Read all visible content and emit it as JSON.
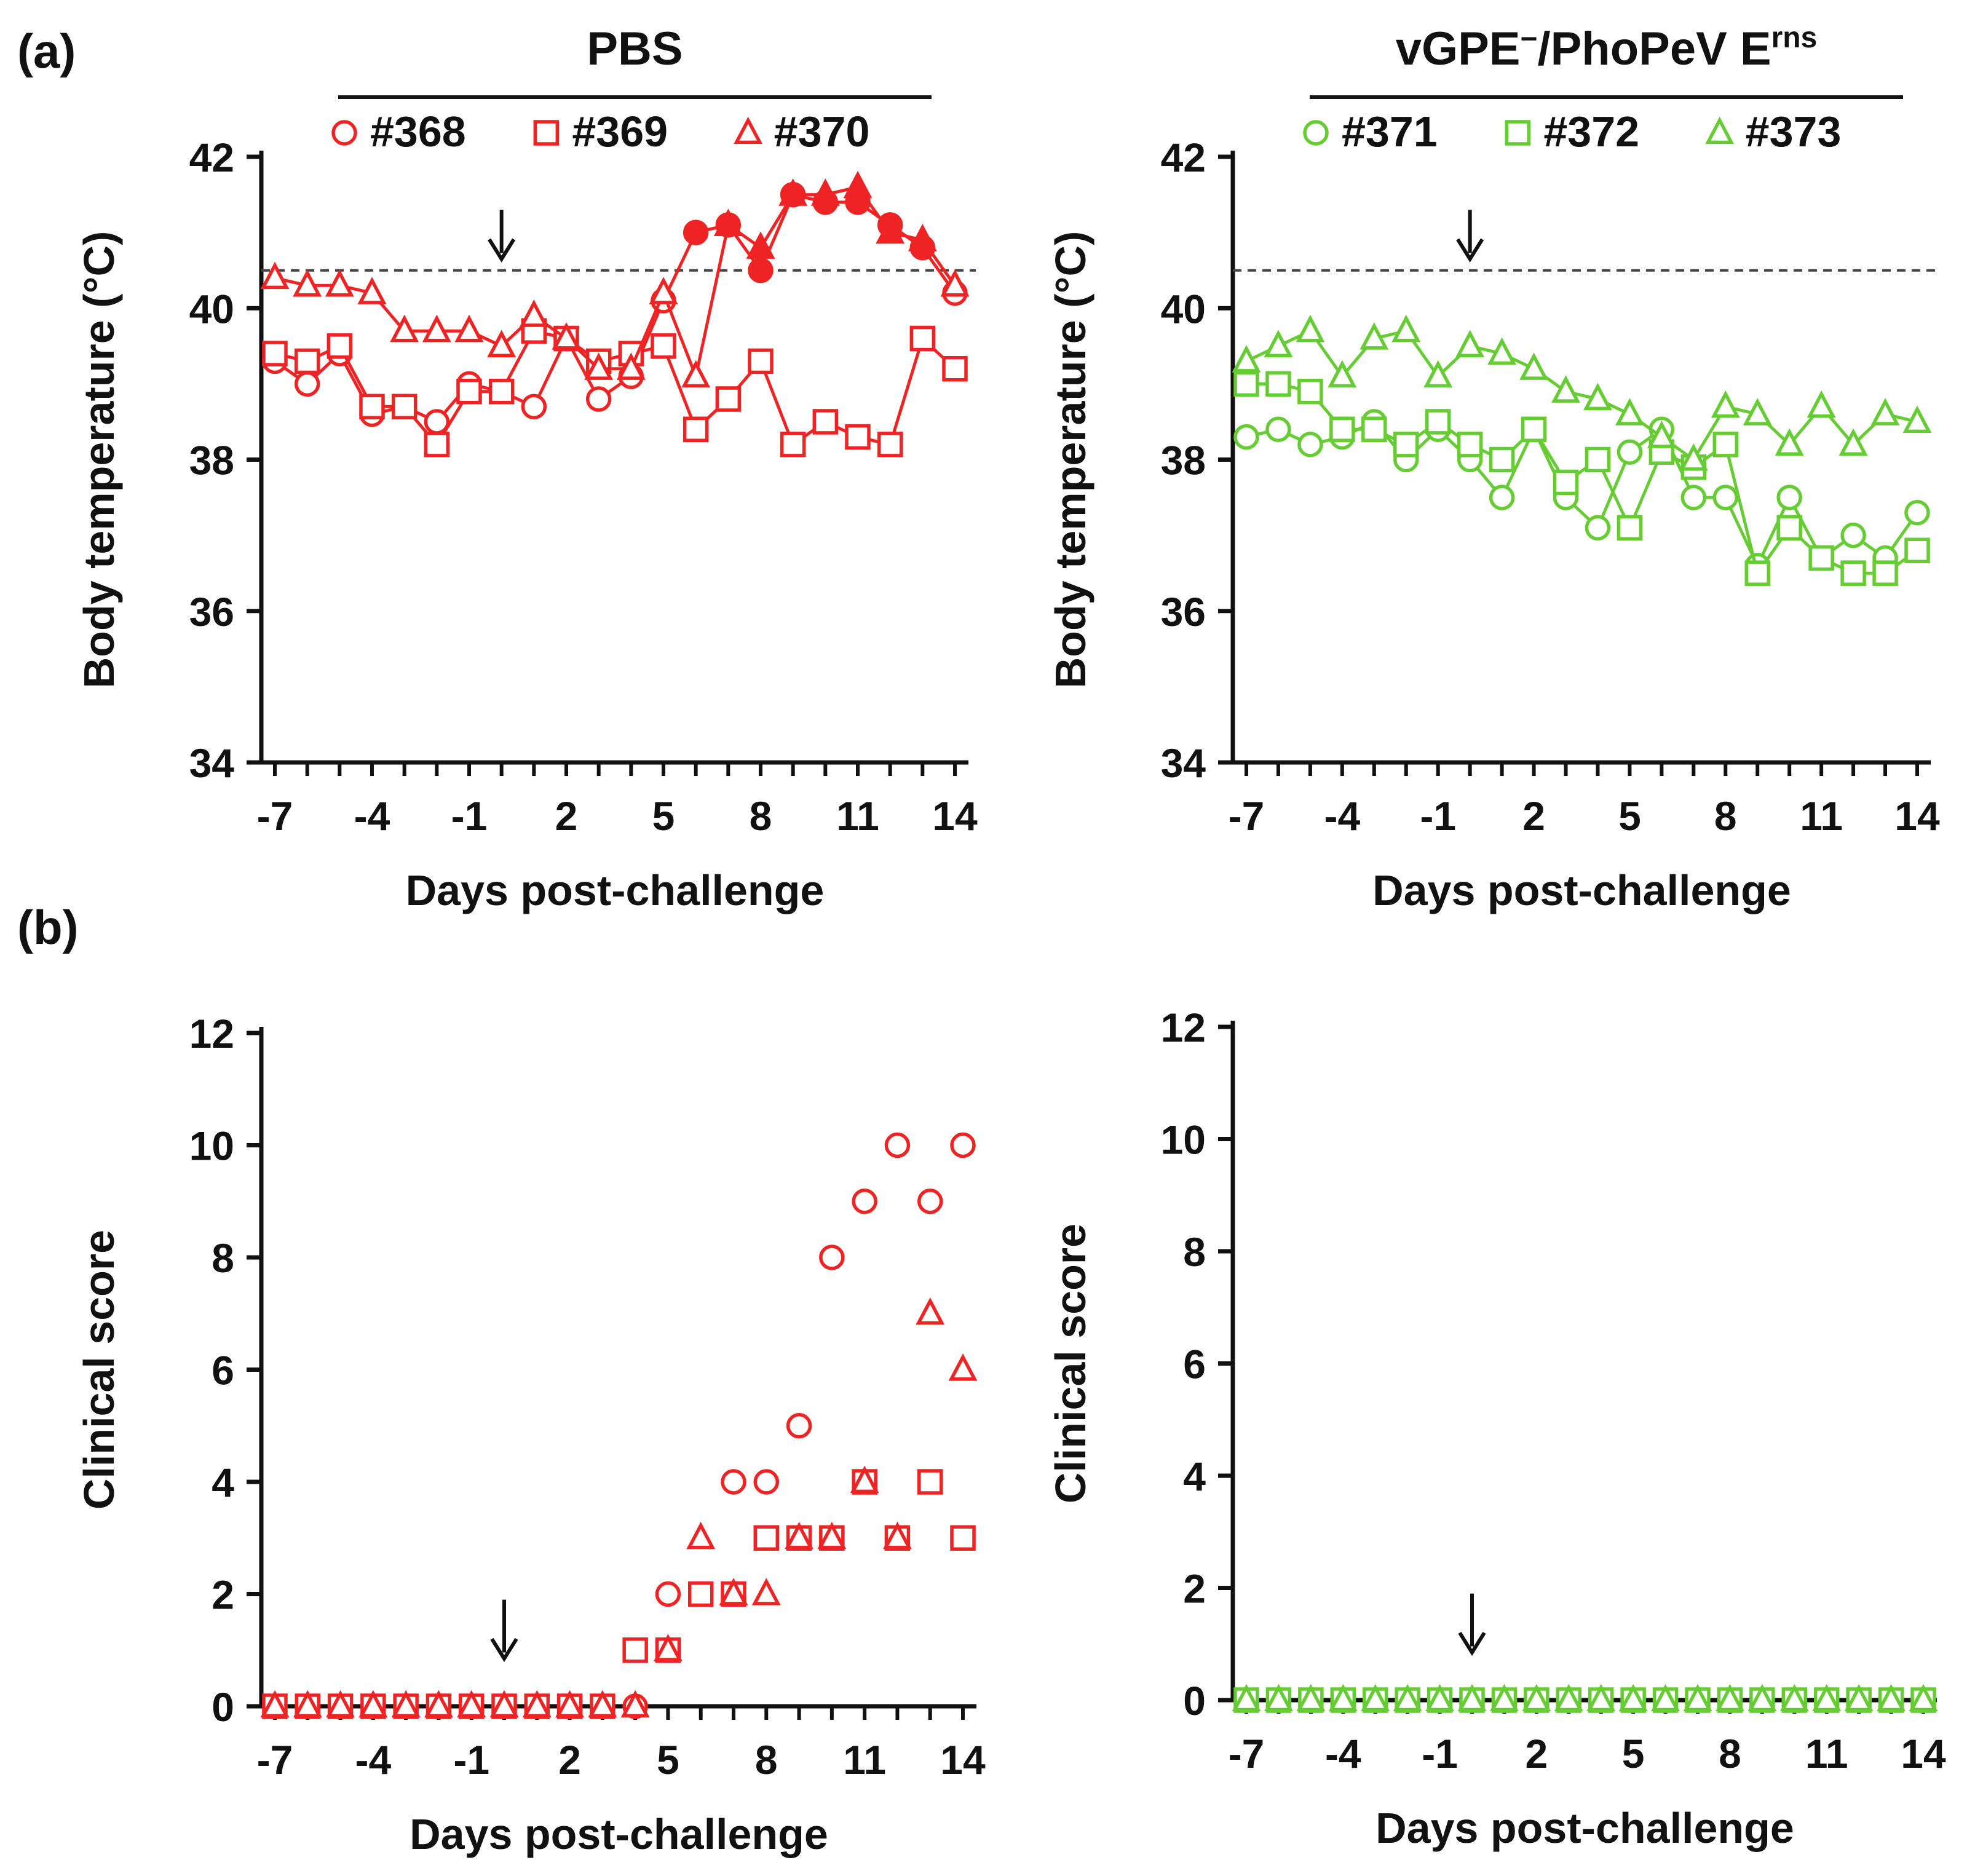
{
  "figure": {
    "label_a": "(a)",
    "label_b": "(b)"
  },
  "colors": {
    "pbs": "#ee2424",
    "vaccine": "#66cc33",
    "axis": "#111111",
    "threshold": "#444444"
  },
  "chart_data": [
    {
      "id": "temp_pbs",
      "type": "line",
      "group_title": "PBS",
      "ylabel": "Body temperature (°C)",
      "xlabel": "Days post-challenge",
      "ylim": [
        34,
        42
      ],
      "yticks": [
        "34",
        "36",
        "38",
        "40",
        "42"
      ],
      "xlim": [
        -7,
        14
      ],
      "xticks": [
        "-7",
        "-4",
        "-1",
        "2",
        "5",
        "8",
        "11",
        "14"
      ],
      "threshold": 40.5,
      "arrow_day": 0,
      "color_key": "pbs",
      "series": [
        {
          "name": "#368",
          "marker": "circle",
          "x": [
            -7,
            -6,
            -5,
            -4,
            -3,
            -2,
            -1,
            0,
            1,
            2,
            3,
            4,
            5,
            6,
            7,
            8,
            9,
            10,
            11,
            12,
            13,
            14
          ],
          "y": [
            39.3,
            39.0,
            39.4,
            38.6,
            38.7,
            38.5,
            39.0,
            38.9,
            38.7,
            39.6,
            38.8,
            39.1,
            40.1,
            41.0,
            41.1,
            40.5,
            41.5,
            41.4,
            41.4,
            41.1,
            40.8,
            40.2
          ],
          "filled_from": 6
        },
        {
          "name": "#369",
          "marker": "square",
          "x": [
            -7,
            -6,
            -5,
            -4,
            -3,
            -2,
            -1,
            0,
            1,
            2,
            3,
            4,
            5,
            6,
            7,
            8,
            9,
            10,
            11,
            12,
            13,
            14
          ],
          "y": [
            39.4,
            39.3,
            39.5,
            38.7,
            38.7,
            38.2,
            38.9,
            38.9,
            39.7,
            39.6,
            39.3,
            39.4,
            39.5,
            38.4,
            38.8,
            39.3,
            38.2,
            38.5,
            38.3,
            38.2,
            39.6,
            39.2
          ],
          "filled_from": 99
        },
        {
          "name": "#370",
          "marker": "triangle",
          "x": [
            -7,
            -6,
            -5,
            -4,
            -3,
            -2,
            -1,
            0,
            1,
            2,
            3,
            4,
            5,
            6,
            7,
            8,
            9,
            10,
            11,
            12,
            13,
            14
          ],
          "y": [
            40.4,
            40.3,
            40.3,
            40.2,
            39.7,
            39.7,
            39.7,
            39.5,
            39.9,
            39.6,
            39.2,
            39.2,
            40.2,
            39.1,
            41.1,
            40.8,
            41.5,
            41.5,
            41.6,
            41.0,
            40.9,
            40.3
          ],
          "filled_from": 7
        }
      ]
    },
    {
      "id": "temp_vac",
      "type": "line",
      "group_title": "vGPE",
      "group_title_sup1": "−",
      "group_title_mid": "/PhoPeV E",
      "group_title_sup2": "rns",
      "ylabel": "Body temperature (°C)",
      "xlabel": "Days post-challenge",
      "ylim": [
        34,
        42
      ],
      "yticks": [
        "34",
        "36",
        "38",
        "40",
        "42"
      ],
      "xlim": [
        -7,
        14
      ],
      "xticks": [
        "-7",
        "-4",
        "-1",
        "2",
        "5",
        "8",
        "11",
        "14"
      ],
      "threshold": 40.5,
      "arrow_day": 0,
      "color_key": "vaccine",
      "series": [
        {
          "name": "#371",
          "marker": "circle",
          "x": [
            -7,
            -6,
            -5,
            -4,
            -3,
            -2,
            -1,
            0,
            1,
            2,
            3,
            4,
            5,
            6,
            7,
            8,
            9,
            10,
            11,
            12,
            13,
            14
          ],
          "y": [
            38.3,
            38.4,
            38.2,
            38.3,
            38.5,
            38.0,
            38.4,
            38.0,
            37.5,
            38.4,
            37.5,
            37.1,
            38.1,
            38.4,
            37.5,
            37.5,
            36.6,
            37.5,
            36.7,
            37.0,
            36.7,
            37.3
          ],
          "filled_from": 99
        },
        {
          "name": "#372",
          "marker": "square",
          "x": [
            -7,
            -6,
            -5,
            -4,
            -3,
            -2,
            -1,
            0,
            1,
            2,
            3,
            4,
            5,
            6,
            7,
            8,
            9,
            10,
            11,
            12,
            13,
            14
          ],
          "y": [
            39.0,
            39.0,
            38.9,
            38.4,
            38.4,
            38.2,
            38.5,
            38.2,
            38.0,
            38.4,
            37.7,
            38.0,
            37.1,
            38.1,
            37.9,
            38.2,
            36.5,
            37.1,
            36.7,
            36.5,
            36.5,
            36.8
          ],
          "filled_from": 99
        },
        {
          "name": "#373",
          "marker": "triangle",
          "x": [
            -7,
            -6,
            -5,
            -4,
            -3,
            -2,
            -1,
            0,
            1,
            2,
            3,
            4,
            5,
            6,
            7,
            8,
            9,
            10,
            11,
            12,
            13,
            14
          ],
          "y": [
            39.3,
            39.5,
            39.7,
            39.1,
            39.6,
            39.7,
            39.1,
            39.5,
            39.4,
            39.2,
            38.9,
            38.8,
            38.6,
            38.3,
            38.0,
            38.7,
            38.6,
            38.2,
            38.7,
            38.2,
            38.6,
            38.5
          ],
          "filled_from": 99
        }
      ]
    },
    {
      "id": "score_pbs",
      "type": "scatter",
      "ylabel": "Clinical score",
      "xlabel": "Days post-challenge",
      "ylim": [
        0,
        12
      ],
      "yticks": [
        "0",
        "2",
        "4",
        "6",
        "8",
        "10",
        "12"
      ],
      "xlim": [
        -7,
        14
      ],
      "xticks": [
        "-7",
        "-4",
        "-1",
        "2",
        "5",
        "8",
        "11",
        "14"
      ],
      "arrow_day": 0,
      "color_key": "pbs",
      "series": [
        {
          "name": "#368",
          "marker": "circle",
          "x": [
            -7,
            -6,
            -5,
            -4,
            -3,
            -2,
            -1,
            0,
            1,
            2,
            3,
            4,
            5,
            6,
            7,
            8,
            9,
            10,
            11,
            12,
            13,
            14
          ],
          "y": [
            0,
            0,
            0,
            0,
            0,
            0,
            0,
            0,
            0,
            0,
            0,
            0,
            2,
            2,
            4,
            4,
            5,
            8,
            9,
            10,
            9,
            10
          ]
        },
        {
          "name": "#369",
          "marker": "square",
          "x": [
            -7,
            -6,
            -5,
            -4,
            -3,
            -2,
            -1,
            0,
            1,
            2,
            3,
            4,
            5,
            6,
            7,
            8,
            9,
            10,
            11,
            12,
            13,
            14
          ],
          "y": [
            0,
            0,
            0,
            0,
            0,
            0,
            0,
            0,
            0,
            0,
            0,
            1,
            1,
            2,
            2,
            3,
            3,
            3,
            4,
            3,
            4,
            3
          ]
        },
        {
          "name": "#370",
          "marker": "triangle",
          "x": [
            -7,
            -6,
            -5,
            -4,
            -3,
            -2,
            -1,
            0,
            1,
            2,
            3,
            4,
            5,
            6,
            7,
            8,
            9,
            10,
            11,
            12,
            13,
            14
          ],
          "y": [
            0,
            0,
            0,
            0,
            0,
            0,
            0,
            0,
            0,
            0,
            0,
            0,
            1,
            3,
            2,
            2,
            3,
            3,
            4,
            3,
            7,
            6
          ]
        }
      ]
    },
    {
      "id": "score_vac",
      "type": "scatter",
      "ylabel": "Clinical score",
      "xlabel": "Days post-challenge",
      "ylim": [
        0,
        12
      ],
      "yticks": [
        "0",
        "2",
        "4",
        "6",
        "8",
        "10",
        "12"
      ],
      "xlim": [
        -7,
        14
      ],
      "xticks": [
        "-7",
        "-4",
        "-1",
        "2",
        "5",
        "8",
        "11",
        "14"
      ],
      "arrow_day": 0,
      "color_key": "vaccine",
      "series": [
        {
          "name": "#371",
          "marker": "circle",
          "x": [
            -7,
            -6,
            -5,
            -4,
            -3,
            -2,
            -1,
            0,
            1,
            2,
            3,
            4,
            5,
            6,
            7,
            8,
            9,
            10,
            11,
            12,
            13,
            14
          ],
          "y": [
            0,
            0,
            0,
            0,
            0,
            0,
            0,
            0,
            0,
            0,
            0,
            0,
            0,
            0,
            0,
            0,
            0,
            0,
            0,
            0,
            0,
            0
          ]
        },
        {
          "name": "#372",
          "marker": "square",
          "x": [
            -7,
            -6,
            -5,
            -4,
            -3,
            -2,
            -1,
            0,
            1,
            2,
            3,
            4,
            5,
            6,
            7,
            8,
            9,
            10,
            11,
            12,
            13,
            14
          ],
          "y": [
            0,
            0,
            0,
            0,
            0,
            0,
            0,
            0,
            0,
            0,
            0,
            0,
            0,
            0,
            0,
            0,
            0,
            0,
            0,
            0,
            0,
            0
          ]
        },
        {
          "name": "#373",
          "marker": "triangle",
          "x": [
            -7,
            -6,
            -5,
            -4,
            -3,
            -2,
            -1,
            0,
            1,
            2,
            3,
            4,
            5,
            6,
            7,
            8,
            9,
            10,
            11,
            12,
            13,
            14
          ],
          "y": [
            0,
            0,
            0,
            0,
            0,
            0,
            0,
            0,
            0,
            0,
            0,
            0,
            0,
            0,
            0,
            0,
            0,
            0,
            0,
            0,
            0,
            0
          ]
        }
      ]
    }
  ]
}
